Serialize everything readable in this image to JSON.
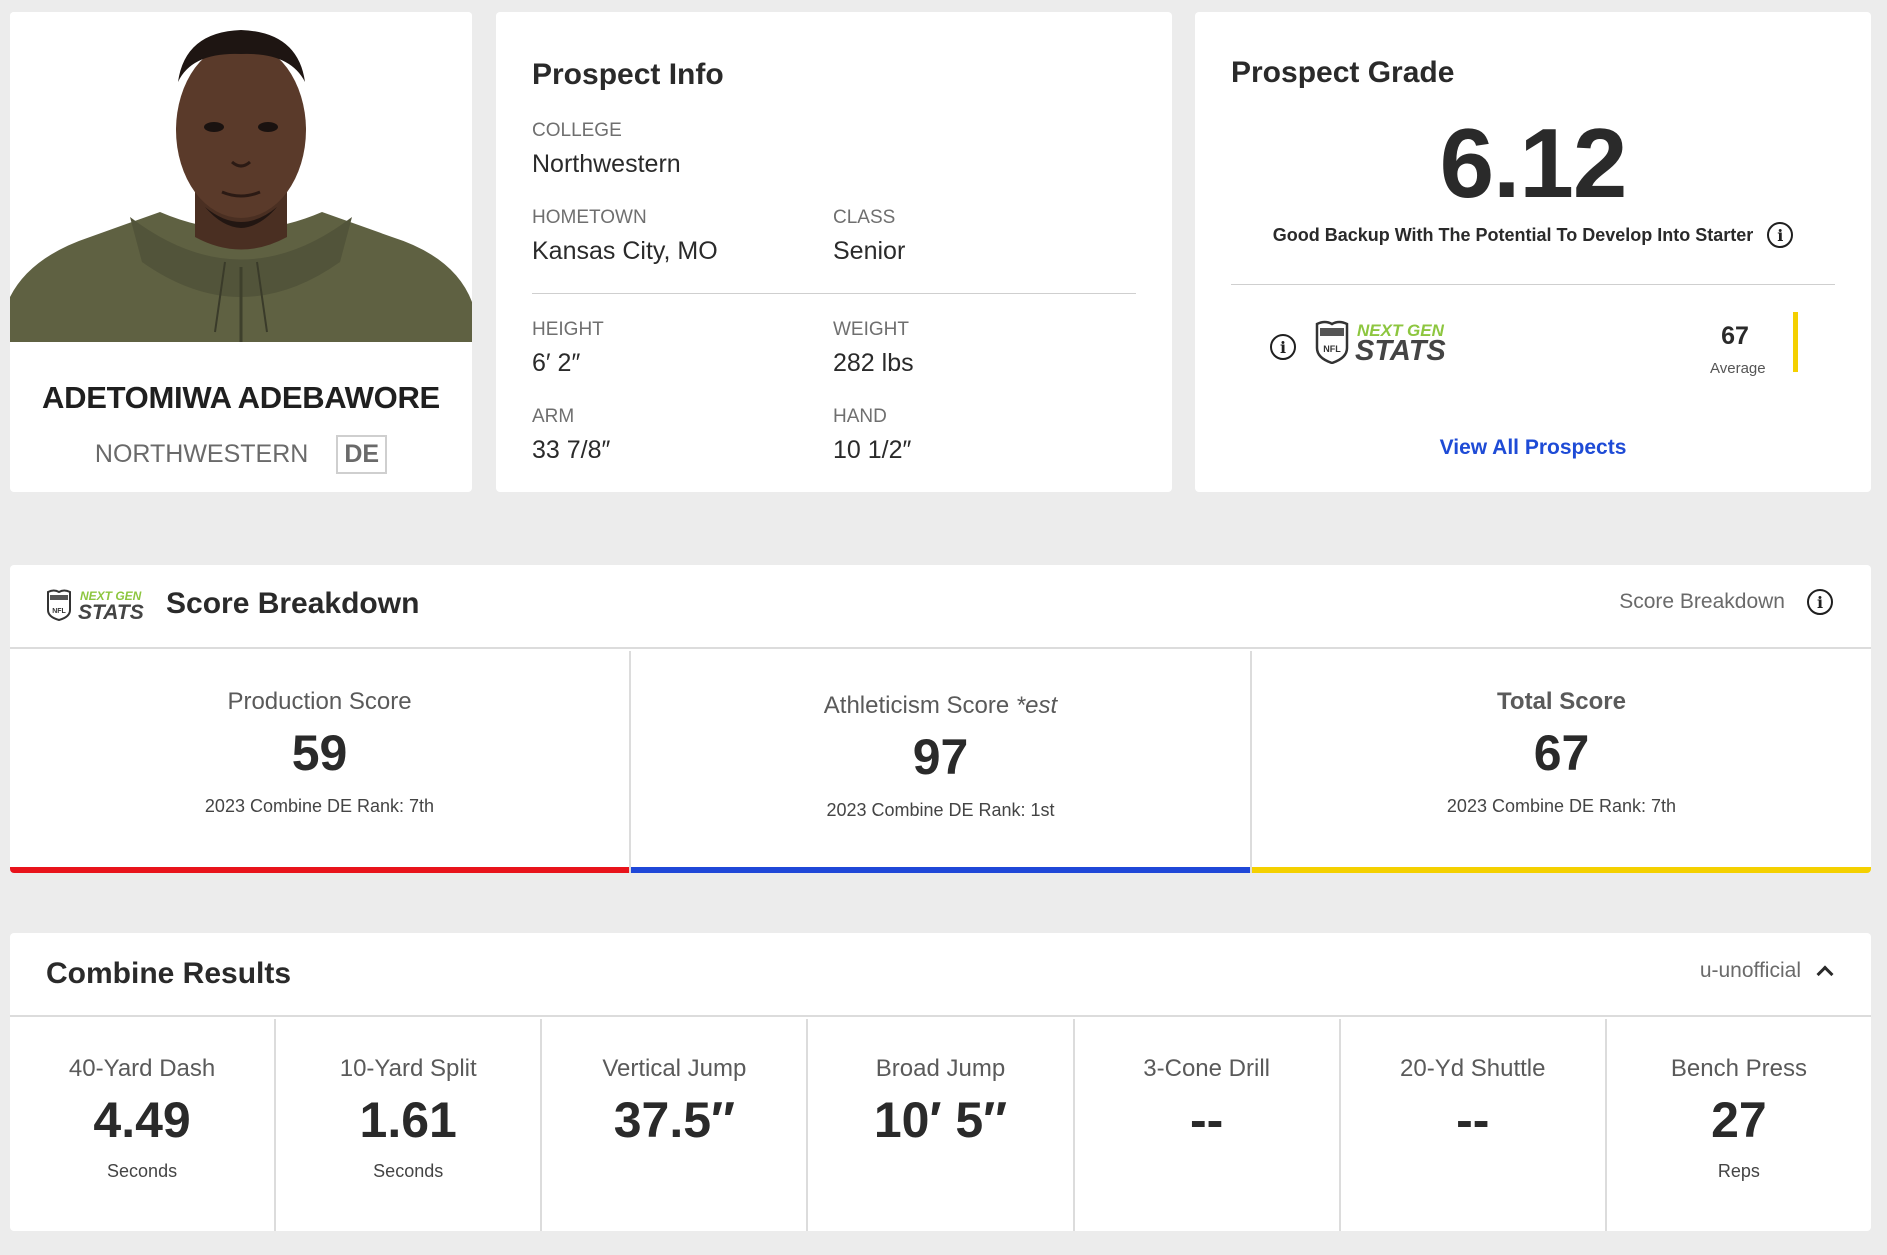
{
  "player": {
    "name": "ADETOMIWA ADEBAWORE",
    "school": "NORTHWESTERN",
    "position": "DE"
  },
  "prospect_info": {
    "title": "Prospect Info",
    "college_label": "COLLEGE",
    "college": "Northwestern",
    "hometown_label": "HOMETOWN",
    "hometown": "Kansas City, MO",
    "class_label": "CLASS",
    "class": "Senior",
    "height_label": "HEIGHT",
    "height": "6′ 2″",
    "weight_label": "WEIGHT",
    "weight": "282 lbs",
    "arm_label": "ARM",
    "arm": "33 7/8″",
    "hand_label": "HAND",
    "hand": "10 1/2″"
  },
  "prospect_grade": {
    "title": "Prospect Grade",
    "grade": "6.12",
    "description": "Good Backup With The Potential To Develop Into Starter",
    "ngs_score": "67",
    "ngs_score_label": "Average",
    "view_all": "View All Prospects"
  },
  "score_breakdown": {
    "title": "Score Breakdown",
    "help_label": "Score Breakdown",
    "columns": [
      {
        "label": "Production Score",
        "value": "59",
        "rank": "2023 Combine DE Rank: 7th"
      },
      {
        "label": "Athleticism Score",
        "label_suffix": "*est",
        "value": "97",
        "rank": "2023 Combine DE Rank: 1st"
      },
      {
        "label": "Total Score",
        "value": "67",
        "rank": "2023 Combine DE Rank: 7th"
      }
    ],
    "colors": {
      "production": "#e8131b",
      "athleticism": "#1f47d8",
      "total": "#f4d000"
    }
  },
  "combine": {
    "title": "Combine Results",
    "toggle_label": "u-unofficial",
    "results": [
      {
        "label": "40-Yard Dash",
        "value": "4.49",
        "unit": "Seconds"
      },
      {
        "label": "10-Yard Split",
        "value": "1.61",
        "unit": "Seconds"
      },
      {
        "label": "Vertical Jump",
        "value": "37.5″",
        "unit": ""
      },
      {
        "label": "Broad Jump",
        "value": "10′ 5″",
        "unit": ""
      },
      {
        "label": "3-Cone Drill",
        "value": "--",
        "unit": ""
      },
      {
        "label": "20-Yd Shuttle",
        "value": "--",
        "unit": ""
      },
      {
        "label": "Bench Press",
        "value": "27",
        "unit": "Reps"
      }
    ]
  },
  "logo": {
    "top_text": "NEXT GEN",
    "bottom_text": "STATS",
    "badge_text": "NFL"
  },
  "icons": [
    "info-icon",
    "chevron-up-icon",
    "nfl-shield-icon"
  ]
}
